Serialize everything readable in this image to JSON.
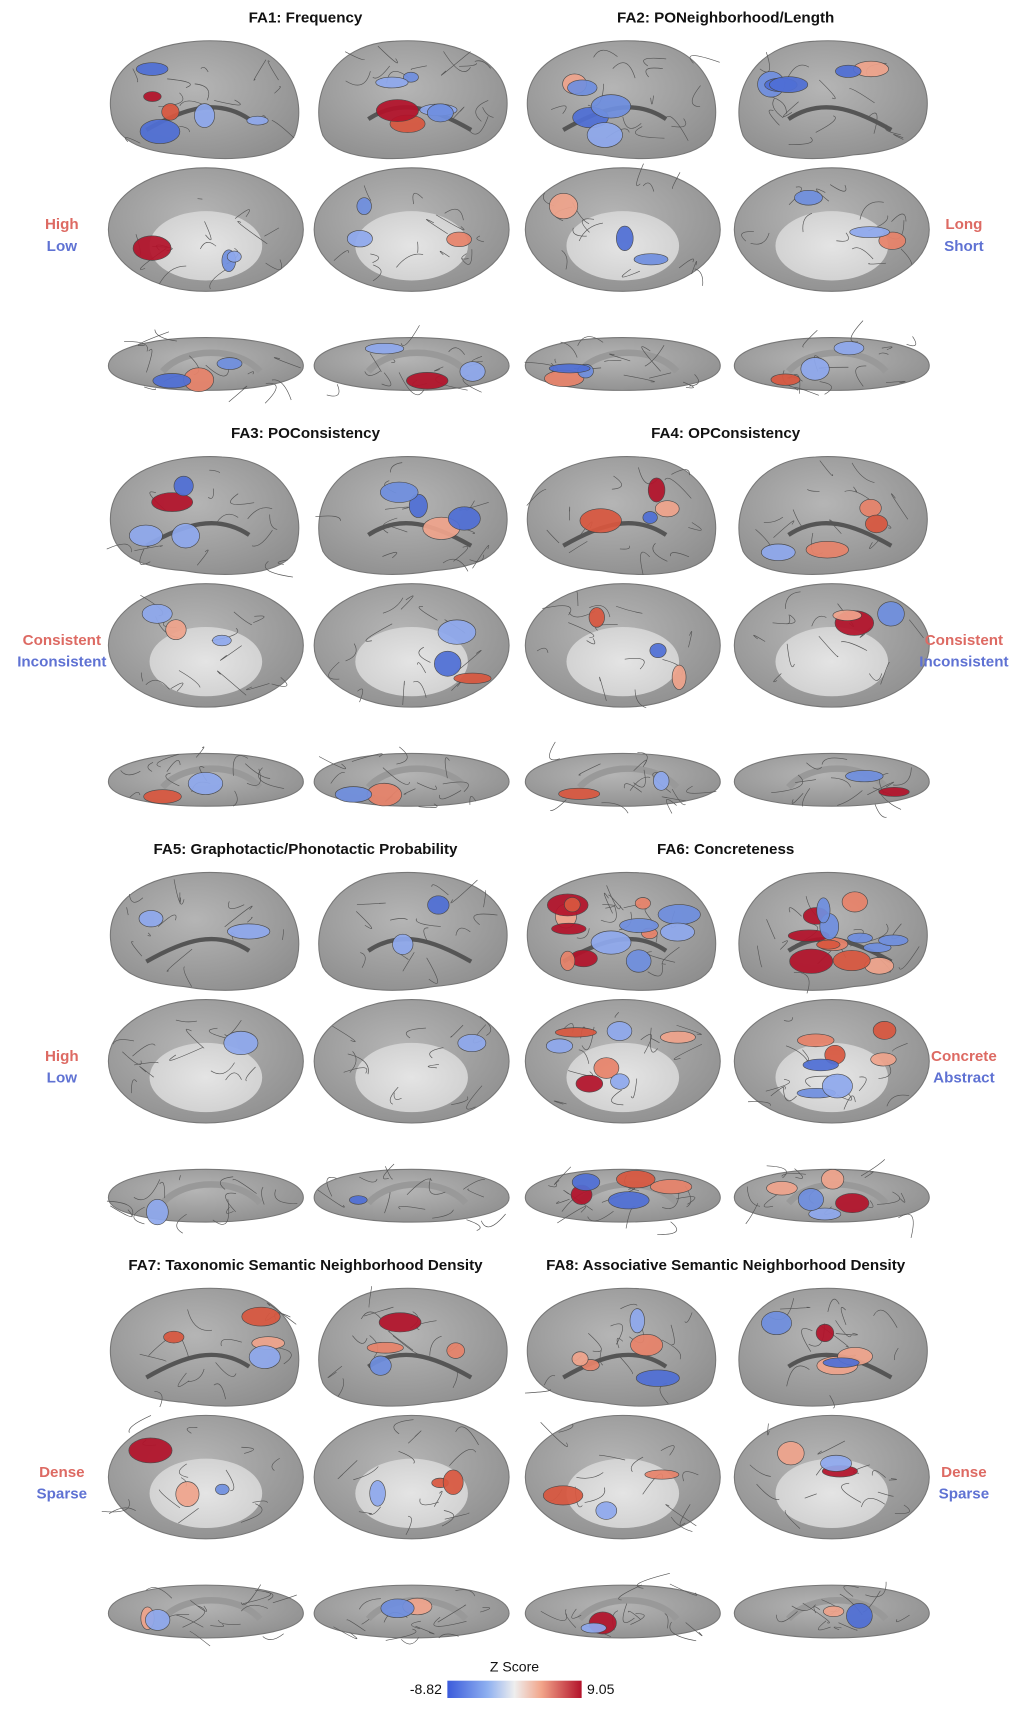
{
  "panels": [
    {
      "title": "FA1: Frequency",
      "labels": [
        "High",
        "Low"
      ]
    },
    {
      "title": "FA2: PONeighborhood/Length",
      "labels": [
        "Long",
        "Short"
      ]
    },
    {
      "title": "FA3: POConsistency",
      "labels": [
        "Consistent",
        "Inconsistent"
      ]
    },
    {
      "title": "FA4: OPConsistency",
      "labels": [
        "Consistent",
        "Inconsistent"
      ]
    },
    {
      "title": "FA5: Graphotactic/Phonotactic Probability",
      "labels": [
        "High",
        "Low"
      ]
    },
    {
      "title": "FA6: Concreteness",
      "labels": [
        "Concrete",
        "Abstract"
      ]
    },
    {
      "title": "FA7: Taxonomic Semantic Neighborhood Density",
      "labels": [
        "Dense",
        "Sparse"
      ]
    },
    {
      "title": "FA8: Associative Semantic Neighborhood Density",
      "labels": [
        "Dense",
        "Sparse"
      ]
    }
  ],
  "colorbar": {
    "title": "Z Score",
    "min": -8.82,
    "max": 9.05
  }
}
